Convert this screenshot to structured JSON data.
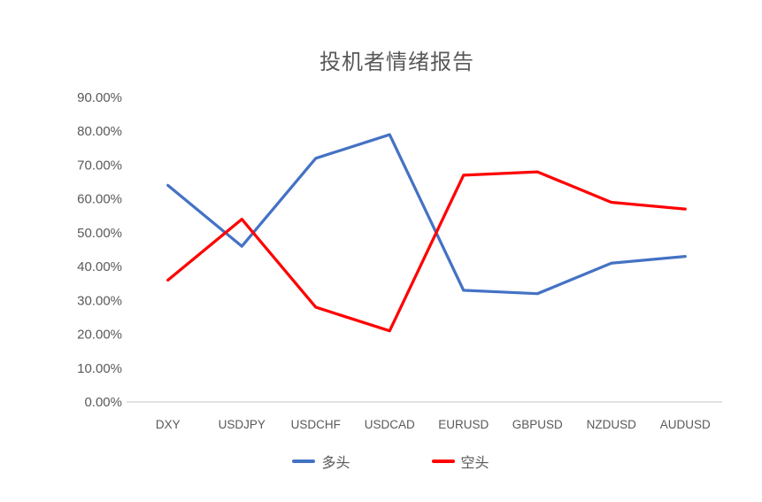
{
  "chart": {
    "title": "投机者情绪报告",
    "text_color": "#595959",
    "axis_line_color": "#D9D9D9",
    "background": "#FFFFFF",
    "legend": {
      "long_label": "多头",
      "short_label": "空头",
      "long_color": "#4472C4",
      "short_color": "#FF0000"
    }
  },
  "chart_data": {
    "type": "line",
    "title": "投机者情绪报告",
    "categories": [
      "DXY",
      "USDJPY",
      "USDCHF",
      "USDCAD",
      "EURUSD",
      "GBPUSD",
      "NZDUSD",
      "AUDUSD"
    ],
    "series": [
      {
        "name": "多头",
        "color": "#4472C4",
        "values": [
          64,
          46,
          72,
          79,
          33,
          32,
          41,
          43
        ]
      },
      {
        "name": "空头",
        "color": "#FF0000",
        "values": [
          36,
          54,
          28,
          21,
          67,
          68,
          59,
          57
        ]
      }
    ],
    "xlabel": "",
    "ylabel": "",
    "ylim": [
      0,
      90
    ],
    "ytick_step": 10,
    "ytick_labels": [
      "0.00%",
      "10.00%",
      "20.00%",
      "30.00%",
      "40.00%",
      "50.00%",
      "60.00%",
      "70.00%",
      "80.00%",
      "90.00%"
    ],
    "grid": false,
    "legend_position": "bottom"
  }
}
